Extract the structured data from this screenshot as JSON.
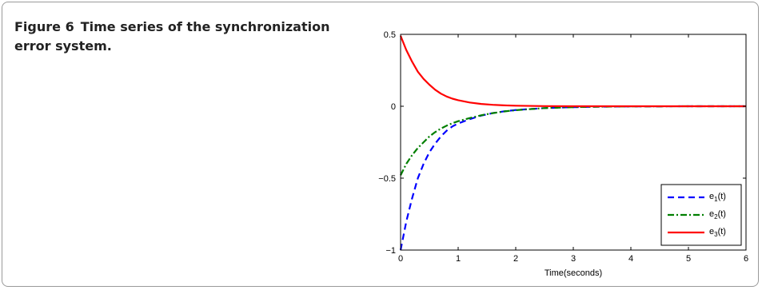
{
  "caption": {
    "figure_label": "Figure 6",
    "text": "Time series of the synchronization error system."
  },
  "chart_data": {
    "type": "line",
    "title": "",
    "xlabel": "Time(seconds)",
    "ylabel": "",
    "xlim": [
      0,
      6
    ],
    "ylim": [
      -1,
      0.5
    ],
    "xticks": [
      0,
      1,
      2,
      3,
      4,
      5,
      6
    ],
    "yticks": [
      -1,
      -0.5,
      0,
      0.5
    ],
    "ytick_labels": [
      "−1",
      "−0.5",
      "0",
      "0.5"
    ],
    "grid": false,
    "legend_position": "bottom-right",
    "x": [
      0,
      0.1,
      0.2,
      0.3,
      0.4,
      0.5,
      0.6,
      0.7,
      0.8,
      0.9,
      1.0,
      1.2,
      1.4,
      1.6,
      1.8,
      2.0,
      2.5,
      3.0,
      3.5,
      4.0,
      5.0,
      6.0
    ],
    "series": [
      {
        "name": "e1(t)",
        "label_main": "e",
        "label_sub": "1",
        "label_tail": "(t)",
        "color": "#0000ff",
        "style": "dashed",
        "values": [
          -1.0,
          -0.8,
          -0.64,
          -0.5,
          -0.4,
          -0.32,
          -0.26,
          -0.21,
          -0.17,
          -0.14,
          -0.12,
          -0.09,
          -0.065,
          -0.048,
          -0.035,
          -0.026,
          -0.013,
          -0.006,
          -0.003,
          -0.001,
          0,
          0
        ]
      },
      {
        "name": "e2(t)",
        "label_main": "e",
        "label_sub": "2",
        "label_tail": "(t)",
        "color": "#007f00",
        "style": "dashdot",
        "values": [
          -0.48,
          -0.4,
          -0.34,
          -0.29,
          -0.25,
          -0.21,
          -0.18,
          -0.155,
          -0.135,
          -0.118,
          -0.104,
          -0.082,
          -0.063,
          -0.048,
          -0.036,
          -0.027,
          -0.013,
          -0.006,
          -0.003,
          -0.001,
          0,
          0
        ]
      },
      {
        "name": "e3(t)",
        "label_main": "e",
        "label_sub": "3",
        "label_tail": "(t)",
        "color": "#ff0000",
        "style": "solid",
        "values": [
          0.49,
          0.39,
          0.31,
          0.24,
          0.19,
          0.15,
          0.115,
          0.088,
          0.068,
          0.053,
          0.042,
          0.026,
          0.016,
          0.01,
          0.006,
          0.004,
          0.001,
          0,
          0,
          0,
          0,
          0
        ]
      }
    ]
  }
}
